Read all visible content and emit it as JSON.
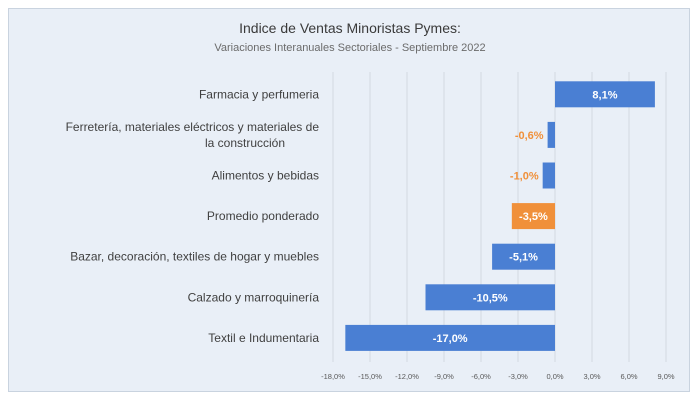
{
  "chart_data": {
    "type": "bar",
    "orientation": "horizontal",
    "title": "Indice de Ventas Minoristas Pymes:",
    "subtitle": "Variaciones Interanuales Sectoriales - Septiembre 2022",
    "categories": [
      "Farmacia y perfumeria",
      [
        "Ferretería, materiales eléctricos y materiales de",
        "la construcción"
      ],
      "Alimentos y bebidas",
      "Promedio ponderado",
      "Bazar, decoración, textiles de hogar y muebles",
      "Calzado y marroquinería",
      "Textil e Indumentaria"
    ],
    "values": [
      8.1,
      -0.6,
      -1.0,
      -3.5,
      -5.1,
      -10.5,
      -17.0
    ],
    "data_labels": [
      "8,1%",
      "-0,6%",
      "-1,0%",
      "-3,5%",
      "-5,1%",
      "-10,5%",
      "-17,0%"
    ],
    "highlight_index": 3,
    "xlim": [
      -18,
      9
    ],
    "ticks": [
      -18,
      -15,
      -12,
      -9,
      -6,
      -3,
      0,
      3,
      6,
      9
    ],
    "tick_labels": [
      "-18,0%",
      "-15,0%",
      "-12,0%",
      "-9,0%",
      "-6,0%",
      "-3,0%",
      "0,0%",
      "3,0%",
      "6,0%",
      "9,0%"
    ],
    "grid": true,
    "colors": {
      "bar": "#4a7fd3",
      "highlight": "#f0903a",
      "label_outside": "#f0903a",
      "label_inside": "#ffffff",
      "grid": "#d3d9e2",
      "background": "#e9eff7"
    }
  }
}
